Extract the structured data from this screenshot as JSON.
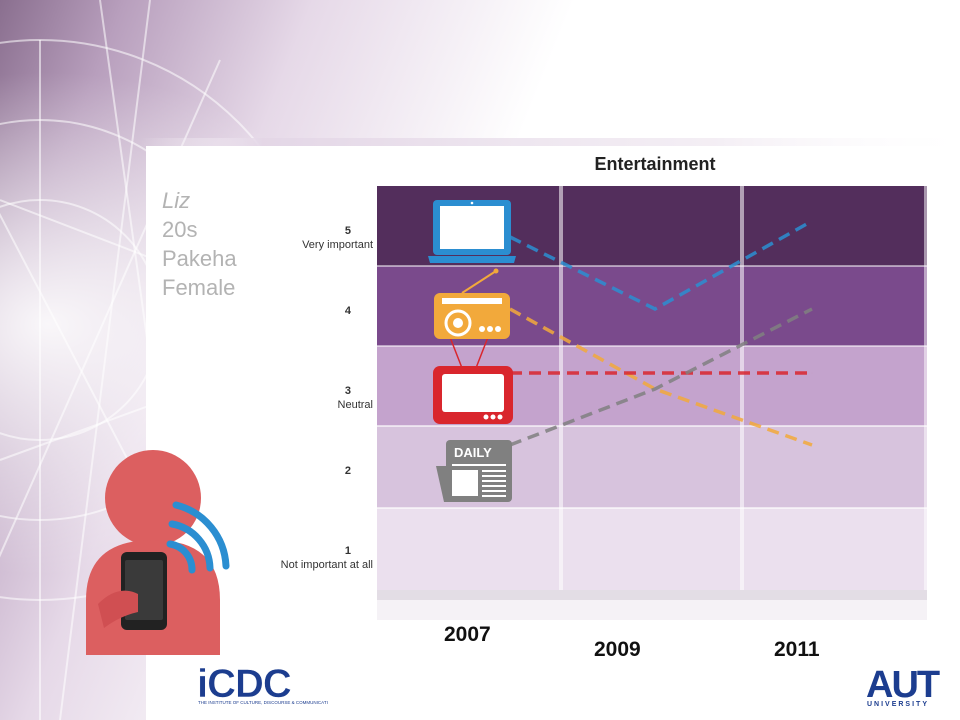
{
  "persona": {
    "name": "Liz",
    "age": "20s",
    "ethnicity": "Pakeha",
    "gender": "Female"
  },
  "logos": {
    "icdc": "iCDC",
    "icdc_subtitle": "THE INSTITUTE OF CULTURE, DISCOURSE & COMMUNICATION",
    "aut": "AUT",
    "aut_subtitle": "UNIVERSITY"
  },
  "colors": {
    "band_5": "#532e5c",
    "band_4": "#7a4a8c",
    "band_3": "#c4a3cd",
    "band_2": "#d7c3dd",
    "band_1": "#ebe0ee",
    "laptop": "#2b8ed1",
    "radio": "#f2a93b",
    "tv": "#d9262d",
    "newspaper": "#808080"
  },
  "chart_data": {
    "type": "line",
    "title": "Entertainment",
    "x": [
      "2007",
      "2009",
      "2011"
    ],
    "ylim": [
      1,
      5
    ],
    "y_ticks": [
      {
        "value": 5,
        "label": "5",
        "desc": "Very important"
      },
      {
        "value": 4,
        "label": "4",
        "desc": ""
      },
      {
        "value": 3,
        "label": "3",
        "desc": "Neutral"
      },
      {
        "value": 2,
        "label": "2",
        "desc": ""
      },
      {
        "value": 1,
        "label": "1",
        "desc": "Not important at all"
      }
    ],
    "series": [
      {
        "icon": "laptop-icon",
        "color": "#2b8ed1",
        "values": [
          4.9,
          4.0,
          5.1
        ]
      },
      {
        "icon": "radio-icon",
        "color": "#f2a93b",
        "values": [
          4.0,
          3.0,
          2.3
        ]
      },
      {
        "icon": "tv-icon",
        "color": "#d9262d",
        "values": [
          3.2,
          3.2,
          3.2
        ]
      },
      {
        "icon": "newspaper-icon",
        "color": "#808080",
        "values": [
          2.3,
          3.0,
          4.0
        ]
      }
    ],
    "grid": false,
    "legend": "icons at left of plot"
  }
}
